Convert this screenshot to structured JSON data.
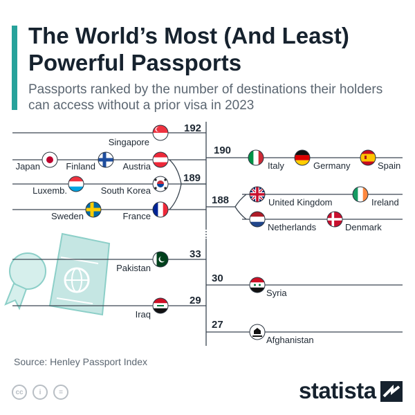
{
  "header": {
    "title": "The World’s Most (And Least) Powerful Passports",
    "subtitle": "Passports ranked by the number of destinations their holders can access without a prior visa in 2023"
  },
  "chart_data": {
    "type": "ranking-bracket",
    "title": "The World’s Most (And Least) Powerful Passports",
    "subtitle": "Passports ranked by the number of destinations their holders can access without a prior visa in 2023",
    "unit": "visa-free destinations",
    "groups": [
      {
        "score": 192,
        "countries": [
          "Singapore"
        ]
      },
      {
        "score": 190,
        "countries": [
          "Italy",
          "Germany",
          "Spain"
        ]
      },
      {
        "score": 189,
        "countries": [
          "Japan",
          "Finland",
          "Austria",
          "Luxemb.",
          "South Korea",
          "Sweden",
          "France"
        ]
      },
      {
        "score": 188,
        "countries": [
          "United Kingdom",
          "Ireland",
          "Netherlands",
          "Denmark"
        ]
      },
      {
        "score": 33,
        "countries": [
          "Pakistan"
        ]
      },
      {
        "score": 30,
        "countries": [
          "Syria"
        ]
      },
      {
        "score": 29,
        "countries": [
          "Iraq"
        ]
      },
      {
        "score": 27,
        "countries": [
          "Afghanistan"
        ]
      }
    ]
  },
  "footer": {
    "source": "Source: Henley Passport Index",
    "brand": "statista",
    "license_icons": [
      "cc-icon",
      "attribution-icon",
      "no-derivatives-icon"
    ]
  },
  "colors": {
    "accent": "#27a29b",
    "text": "#1e2833",
    "muted": "#5b6671",
    "line": "#3a4550",
    "passport_fill": "#c5e6e3"
  }
}
